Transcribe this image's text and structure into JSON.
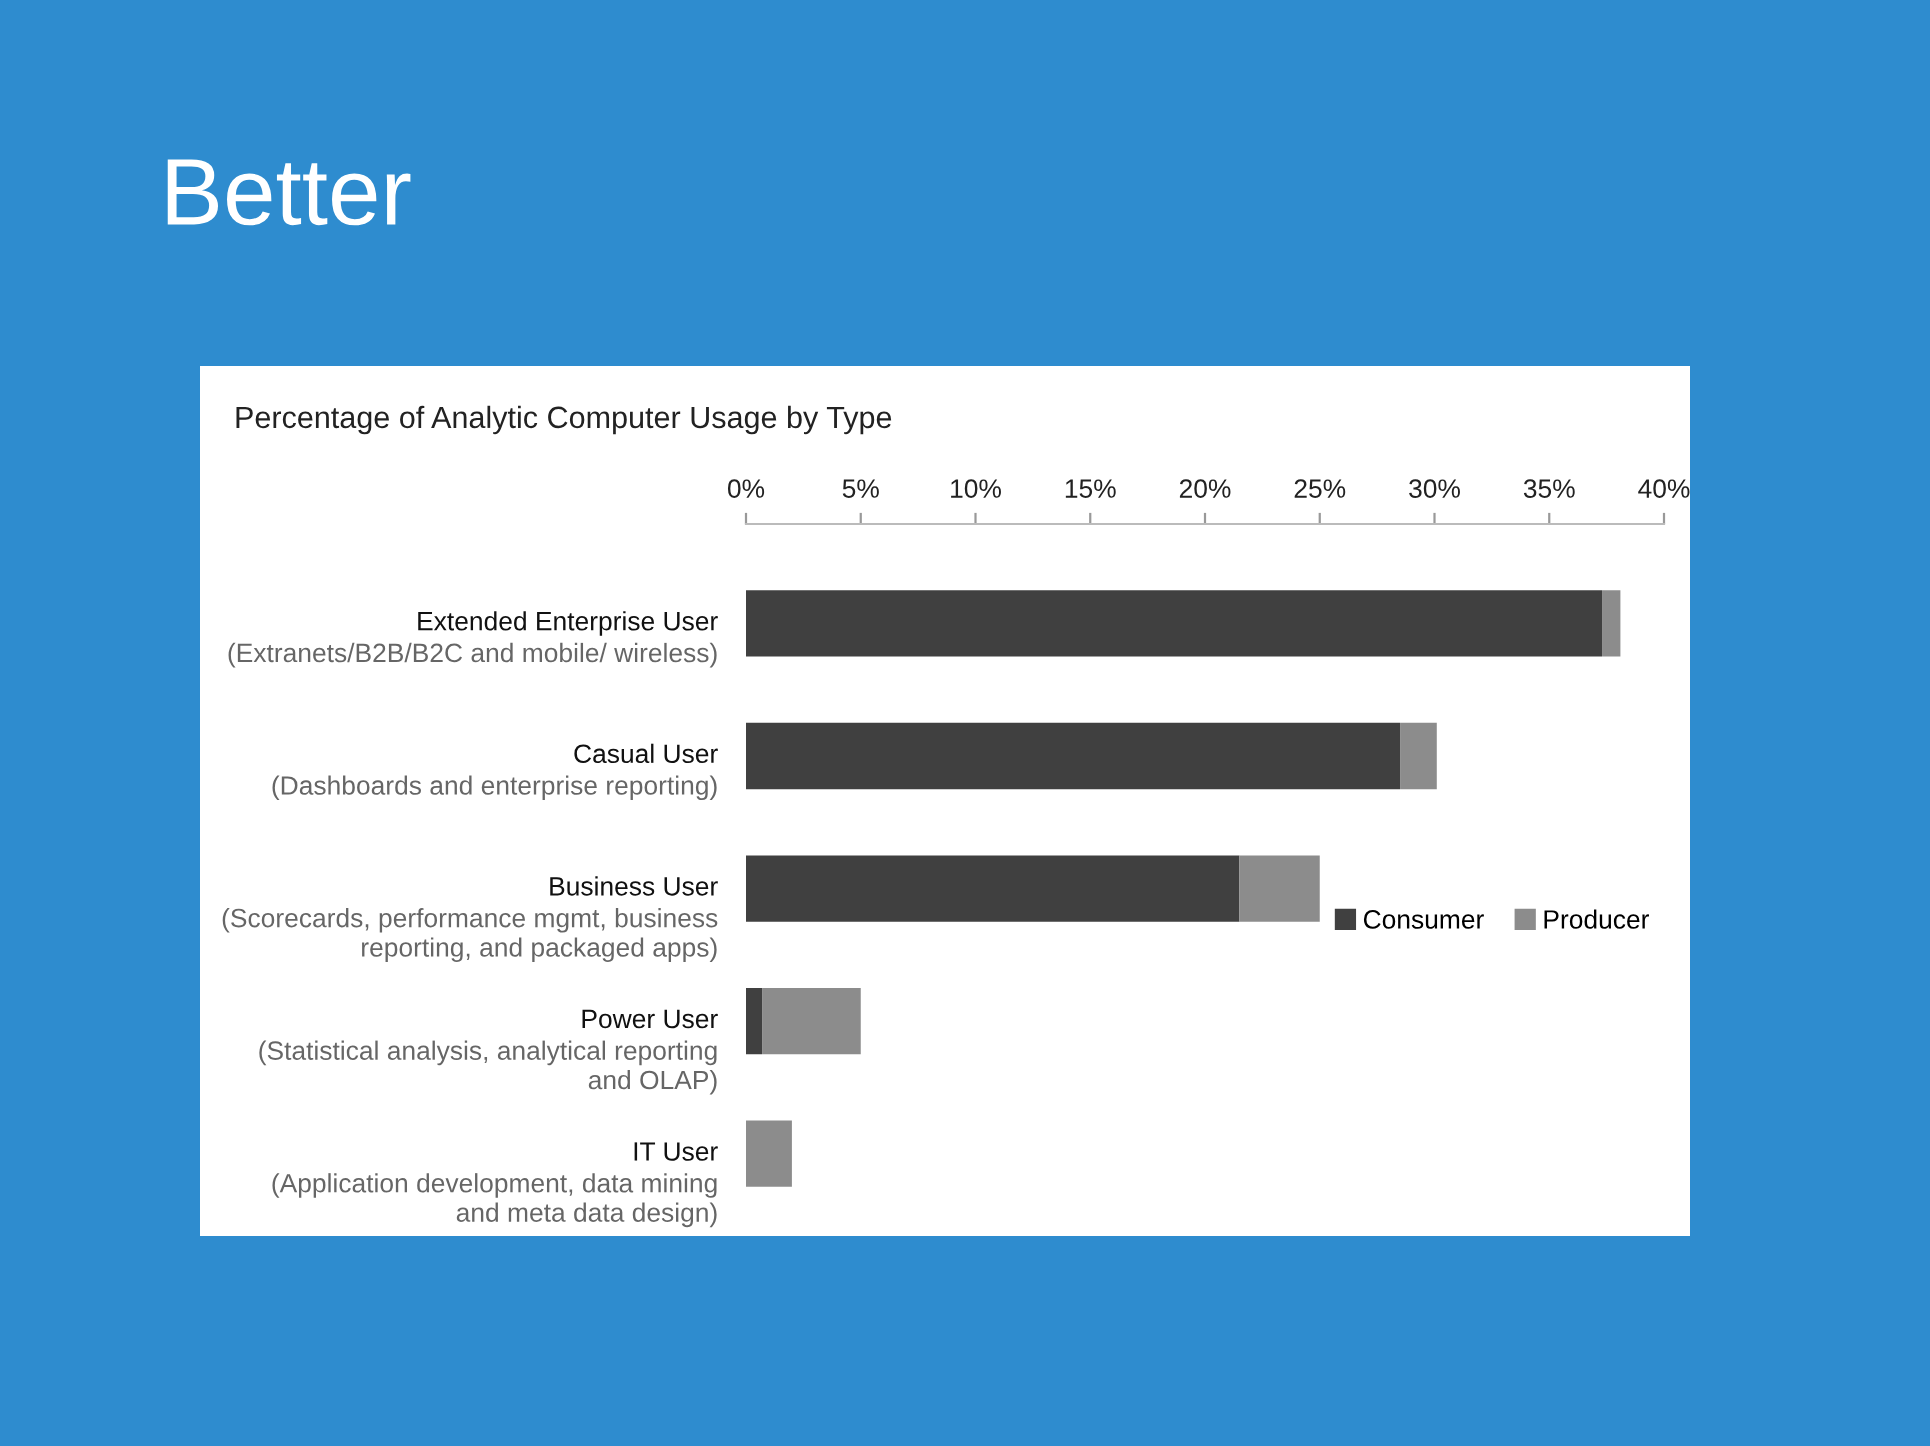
{
  "chart_data": {
    "type": "bar",
    "orientation": "horizontal",
    "stacked": true,
    "title": "Better",
    "subtitle": "Percentage of Analytic Computer Usage by Type",
    "categories": [
      "Extended Enterprise User\n(Extranets/B2B/B2C and mobile/ wireless)",
      "Casual User\n(Dashboards and enterprise reporting)",
      "Business User\n(Scorecards, performance mgmt, business\nreporting, and packaged apps)",
      "Power User\n(Statistical analysis, analytical reporting\nand OLAP)",
      "IT User\n(Application development, data mining\nand meta data design)"
    ],
    "series": [
      {
        "name": "Consumer",
        "color": "#404040",
        "values": [
          37.3,
          28.5,
          21.5,
          0.7,
          0
        ]
      },
      {
        "name": "Producer",
        "color": "#8c8c8c",
        "values": [
          0.8,
          1.6,
          3.5,
          4.3,
          2.0
        ]
      }
    ],
    "xlim": [
      0,
      40
    ],
    "xticks": [
      {
        "value": 0,
        "label": "0%"
      },
      {
        "value": 5,
        "label": "5%"
      },
      {
        "value": 10,
        "label": "10%"
      },
      {
        "value": 15,
        "label": "15%"
      },
      {
        "value": 20,
        "label": "20%"
      },
      {
        "value": 25,
        "label": "25%"
      },
      {
        "value": 30,
        "label": "30%"
      },
      {
        "value": 35,
        "label": "35%"
      },
      {
        "value": 40,
        "label": "40%"
      }
    ],
    "grid": false,
    "legend": "right"
  }
}
